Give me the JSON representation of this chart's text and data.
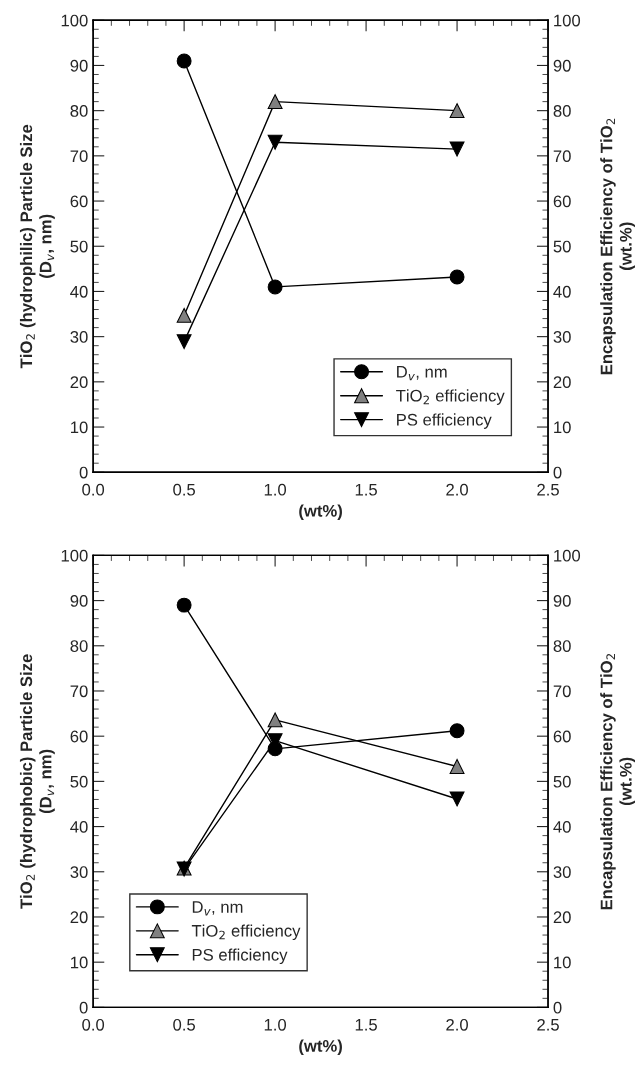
{
  "chart_data": [
    {
      "type": "line",
      "xlabel": "(wt%)",
      "ylabel": "TiO$_{2}$ (hydrophilic) Particle Size\n(D$_{v}$, nm)",
      "y2label": "Encapsulation Efficiency of TiO$_{2}$\n(wt.%)",
      "x": [
        0.5,
        1.0,
        2.0
      ],
      "xlim": [
        0.0,
        2.5
      ],
      "xticks": [
        {
          "value": 0.0,
          "label": "0.0"
        },
        {
          "value": 0.5,
          "label": "0.5"
        },
        {
          "value": 1.0,
          "label": "1.0"
        },
        {
          "value": 1.5,
          "label": "1.5"
        },
        {
          "value": 2.0,
          "label": "2.0"
        },
        {
          "value": 2.5,
          "label": "2.5"
        }
      ],
      "ylim": [
        0,
        100
      ],
      "yticks": [
        0,
        10,
        20,
        30,
        40,
        50,
        60,
        70,
        80,
        90,
        100
      ],
      "y2lim": [
        0,
        100
      ],
      "y2ticks": [
        0,
        10,
        20,
        30,
        40,
        50,
        60,
        70,
        80,
        90,
        100
      ],
      "grid": false,
      "legend": "bottom right",
      "line_style": "solid",
      "series": [
        {
          "name": "D$_{v}$, nm",
          "color": "#000000",
          "marker": "circle",
          "values": [
            91,
            41,
            43.2
          ]
        },
        {
          "name": "TiO$_{2}$ efficiency",
          "color": "#808080",
          "marker": "triangle",
          "values": [
            34.7,
            82,
            80
          ]
        },
        {
          "name": "PS efficiency",
          "color": "#000000",
          "marker": "triangle_down",
          "values": [
            28.9,
            73,
            71.5
          ]
        }
      ]
    },
    {
      "type": "line",
      "xlabel": "(wt%)",
      "ylabel": "TiO$_{2}$ (hydrophobic) Particle Size\n(D$_{v}$, nm)",
      "y2label": "Encapsulation Efficiency of TiO$_{2}$\n(wt.%)",
      "x": [
        0.5,
        1.0,
        2.0
      ],
      "xlim": [
        0.0,
        2.5
      ],
      "xticks": [
        {
          "value": 0.0,
          "label": "0.0"
        },
        {
          "value": 0.5,
          "label": "0.5"
        },
        {
          "value": 1.0,
          "label": "1.0"
        },
        {
          "value": 1.5,
          "label": "1.5"
        },
        {
          "value": 2.0,
          "label": "2.0"
        },
        {
          "value": 2.5,
          "label": "2.5"
        }
      ],
      "ylim": [
        0,
        100
      ],
      "yticks": [
        0,
        10,
        20,
        30,
        40,
        50,
        60,
        70,
        80,
        90,
        100
      ],
      "y2lim": [
        0,
        100
      ],
      "y2ticks": [
        0,
        10,
        20,
        30,
        40,
        50,
        60,
        70,
        80,
        90,
        100
      ],
      "grid": false,
      "legend": "bottom left",
      "line_style": "solid",
      "series": [
        {
          "name": "D$_{v}$, nm",
          "color": "#000000",
          "marker": "circle",
          "values": [
            89,
            57.2,
            61.2
          ]
        },
        {
          "name": "TiO$_{2}$ efficiency",
          "color": "#808080",
          "marker": "triangle",
          "values": [
            30.8,
            63.6,
            53.3
          ]
        },
        {
          "name": "PS efficiency",
          "color": "#000000",
          "marker": "triangle_down",
          "values": [
            30.6,
            59,
            46.1
          ]
        }
      ]
    }
  ]
}
